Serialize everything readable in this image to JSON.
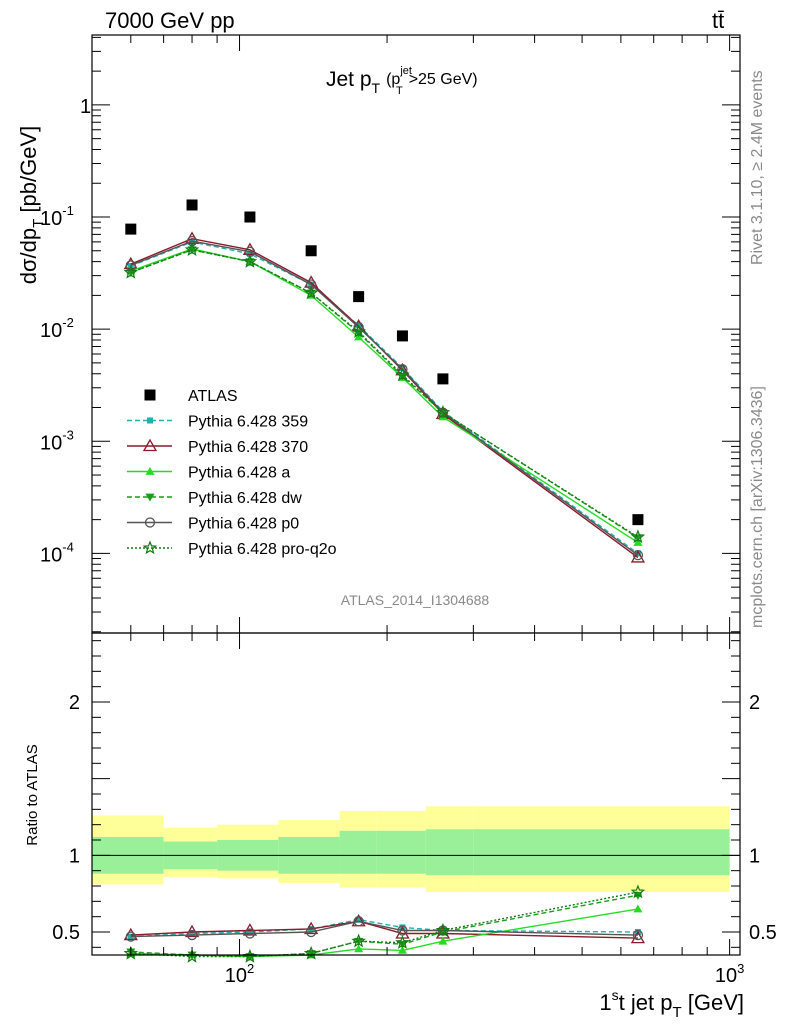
{
  "header": {
    "energy_label": "7000 GeV pp",
    "process_label": "tt̄",
    "title_main": "Jet p",
    "title_main_sub": "T",
    "title_cut_open": "(p",
    "title_cut_sup": "jet",
    "title_cut_sub": "T",
    "title_cut_close": ">25 GeV)",
    "side_label_top": "Rivet 3.1.10, ≥ 2.4M events",
    "side_label_bottom": "mcplots.cern.ch [arXiv:1306.3436]",
    "analysis_id": "ATLAS_2014_I1304688"
  },
  "axes": {
    "ylabel_main_a": "dσ/dp",
    "ylabel_main_sub": "T",
    "ylabel_main_b": " [pb/GeV]",
    "ylabel_ratio": "Ratio to ATLAS",
    "xlabel_a": "1",
    "xlabel_sup": "s",
    "xlabel_b": "t jet p",
    "xlabel_sub": "T",
    "xlabel_c": " [GeV]",
    "main_yticks": [
      {
        "value": 0.0001,
        "base": "10",
        "exp": "-4"
      },
      {
        "value": 0.001,
        "base": "10",
        "exp": "-3"
      },
      {
        "value": 0.01,
        "base": "10",
        "exp": "-2"
      },
      {
        "value": 0.1,
        "base": "10",
        "exp": "-1"
      },
      {
        "value": 1,
        "base": "1",
        "exp": ""
      }
    ],
    "ratio_yticks": [
      {
        "value": 0.5,
        "label": "0.5"
      },
      {
        "value": 1,
        "label": "1"
      },
      {
        "value": 2,
        "label": "2"
      }
    ],
    "xticks": [
      {
        "value": 100,
        "base": "10",
        "exp": "2"
      },
      {
        "value": 1000,
        "base": "10",
        "exp": "3"
      }
    ]
  },
  "legend": [
    {
      "label": "ATLAS",
      "color": "#000000",
      "marker": "square",
      "dash": "none"
    },
    {
      "label": "Pythia 6.428 359",
      "color": "#20b2aa",
      "marker": "smallsquare",
      "dash": "5,3"
    },
    {
      "label": "Pythia 6.428 370",
      "color": "#8b1a2b",
      "marker": "opentriangle",
      "dash": "none"
    },
    {
      "label": "Pythia 6.428 a",
      "color": "#22dd22",
      "marker": "triangle",
      "dash": "none"
    },
    {
      "label": "Pythia 6.428 dw",
      "color": "#1a9e1a",
      "marker": "invtriangle",
      "dash": "5,3"
    },
    {
      "label": "Pythia 6.428 p0",
      "color": "#555555",
      "marker": "opencircle",
      "dash": "none"
    },
    {
      "label": "Pythia 6.428 pro-q2o",
      "color": "#137a13",
      "marker": "star",
      "dash": "2,2"
    }
  ],
  "chart_data": {
    "type": "scatter",
    "xscale": "log",
    "yscale": "log",
    "xlim": [
      50,
      1050
    ],
    "ylim": [
      1.95e-05,
      4.2
    ],
    "ratio_ylim": [
      0.35,
      2.45
    ],
    "x": [
      60,
      80,
      105,
      140,
      175,
      215,
      260,
      650
    ],
    "x_bins": [
      [
        50,
        70
      ],
      [
        70,
        90
      ],
      [
        90,
        120
      ],
      [
        120,
        160
      ],
      [
        160,
        190
      ],
      [
        190,
        240
      ],
      [
        240,
        300
      ],
      [
        300,
        1000
      ]
    ],
    "data": {
      "name": "ATLAS",
      "values": [
        0.078,
        0.128,
        0.1,
        0.05,
        0.0195,
        0.0087,
        0.0036,
        0.0002
      ]
    },
    "ratio_bands": {
      "stat_lo": [
        0.88,
        0.91,
        0.9,
        0.88,
        0.88,
        0.88,
        0.87,
        0.87
      ],
      "stat_hi": [
        1.12,
        1.09,
        1.1,
        1.12,
        1.16,
        1.16,
        1.17,
        1.17
      ],
      "total_lo": [
        0.81,
        0.86,
        0.85,
        0.82,
        0.79,
        0.79,
        0.76,
        0.76
      ],
      "total_hi": [
        1.26,
        1.18,
        1.2,
        1.23,
        1.29,
        1.29,
        1.32,
        1.32
      ]
    },
    "series": [
      {
        "name": "Pythia 6.428 359",
        "values": [
          0.0365,
          0.06,
          0.047,
          0.025,
          0.0108,
          0.0045,
          0.00185,
          0.0001
        ],
        "ratio": [
          0.47,
          0.49,
          0.5,
          0.52,
          0.58,
          0.53,
          0.51,
          0.5
        ]
      },
      {
        "name": "Pythia 6.428 370",
        "values": [
          0.038,
          0.064,
          0.051,
          0.026,
          0.0106,
          0.0043,
          0.00175,
          9.2e-05
        ],
        "ratio": [
          0.48,
          0.5,
          0.51,
          0.52,
          0.57,
          0.49,
          0.49,
          0.46
        ]
      },
      {
        "name": "Pythia 6.428 a",
        "values": [
          0.033,
          0.052,
          0.04,
          0.02,
          0.0085,
          0.0037,
          0.00165,
          0.000125
        ],
        "ratio": [
          0.36,
          0.35,
          0.34,
          0.35,
          0.39,
          0.38,
          0.44,
          0.65
        ]
      },
      {
        "name": "Pythia 6.428 dw",
        "values": [
          0.032,
          0.051,
          0.04,
          0.021,
          0.0093,
          0.0038,
          0.0018,
          0.000138
        ],
        "ratio": [
          0.37,
          0.35,
          0.34,
          0.36,
          0.44,
          0.42,
          0.5,
          0.74
        ]
      },
      {
        "name": "Pythia 6.428 p0",
        "values": [
          0.037,
          0.061,
          0.049,
          0.025,
          0.0104,
          0.0044,
          0.0018,
          9.65e-05
        ],
        "ratio": [
          0.47,
          0.48,
          0.49,
          0.5,
          0.57,
          0.51,
          0.51,
          0.48
        ]
      },
      {
        "name": "Pythia 6.428 pro-q2o",
        "values": [
          0.032,
          0.051,
          0.04,
          0.021,
          0.0095,
          0.0039,
          0.0018,
          0.00014
        ],
        "ratio": [
          0.36,
          0.34,
          0.34,
          0.36,
          0.44,
          0.43,
          0.51,
          0.76
        ]
      }
    ]
  }
}
